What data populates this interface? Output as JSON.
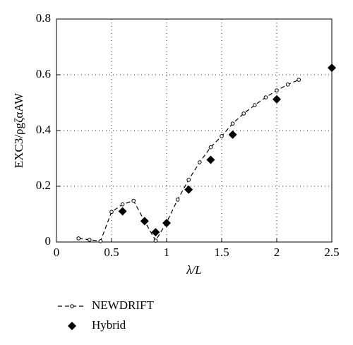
{
  "chart_data": {
    "type": "line",
    "xlabel": "λ/L",
    "ylabel": "EXC3/ρgζαAW",
    "xlim": [
      0,
      2.5
    ],
    "xticks": [
      0,
      0.5,
      1,
      1.5,
      2,
      2.5
    ],
    "ylim": [
      0,
      0.8
    ],
    "yticks": [
      0,
      0.2,
      0.4,
      0.6,
      0.8
    ],
    "grid": true,
    "legend": "bottom-left",
    "series": [
      {
        "name": "NEWDRIFT",
        "color": "#000000",
        "marker": "circle",
        "line": "dashed",
        "x": [
          0.2,
          0.3,
          0.4,
          0.5,
          0.6,
          0.7,
          0.8,
          0.9,
          1.0,
          1.1,
          1.2,
          1.3,
          1.4,
          1.5,
          1.6,
          1.7,
          1.8,
          1.9,
          2.0,
          2.1,
          2.2
        ],
        "values": [
          0.013,
          0.008,
          0.003,
          0.108,
          0.135,
          0.148,
          0.075,
          0.005,
          0.07,
          0.152,
          0.223,
          0.286,
          0.34,
          0.38,
          0.425,
          0.461,
          0.491,
          0.519,
          0.544,
          0.565,
          0.582
        ]
      },
      {
        "name": "Hybrid",
        "color": "#000000",
        "marker": "diamond",
        "line": "none",
        "x": [
          0.6,
          0.8,
          0.9,
          1.0,
          1.2,
          1.4,
          1.6,
          2.0,
          2.5
        ],
        "values": [
          0.11,
          0.075,
          0.035,
          0.068,
          0.188,
          0.295,
          0.385,
          0.512,
          0.625
        ]
      }
    ]
  }
}
